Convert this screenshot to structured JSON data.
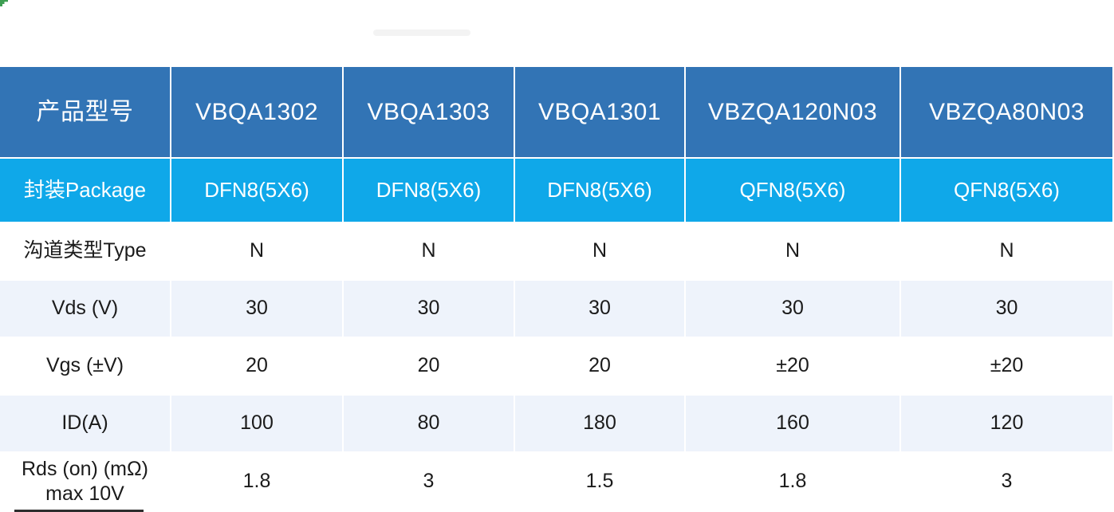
{
  "decorations": {
    "corner_mark": "green-corner-fragment",
    "watermark": "faint-unreadable-smudge",
    "bottom_fragment": "clipped-dark-element"
  },
  "table": {
    "columns": [
      "产品型号",
      "VBQA1302",
      "VBQA1303",
      "VBQA1301",
      "VBZQA120N03",
      "VBZQA80N03"
    ],
    "rows": [
      {
        "label": "封装Package",
        "values": [
          "DFN8(5X6)",
          "DFN8(5X6)",
          "DFN8(5X6)",
          "QFN8(5X6)",
          "QFN8(5X6)"
        ],
        "style": "package"
      },
      {
        "label": "沟道类型Type",
        "values": [
          "N",
          "N",
          "N",
          "N",
          "N"
        ],
        "style": "white"
      },
      {
        "label": "Vds (V)",
        "values": [
          "30",
          "30",
          "30",
          "30",
          "30"
        ],
        "style": "light"
      },
      {
        "label": "Vgs (±V)",
        "values": [
          "20",
          "20",
          "20",
          "±20",
          "±20"
        ],
        "style": "white"
      },
      {
        "label": "ID(A)",
        "values": [
          "100",
          "80",
          "180",
          "160",
          "120"
        ],
        "style": "light"
      },
      {
        "label": "Rds (on) (mΩ) max 10V",
        "values": [
          "1.8",
          "3",
          "1.5",
          "1.8",
          "3"
        ],
        "style": "white"
      }
    ],
    "colors": {
      "header_bg": "#3274B5",
      "header_text": "#ffffff",
      "package_bg": "#0FA8E9",
      "package_text": "#ffffff",
      "light_row_bg": "#EEF3FB",
      "white_row_bg": "#ffffff",
      "body_text": "#1b1b1b",
      "grid_line": "#ffffff"
    }
  }
}
